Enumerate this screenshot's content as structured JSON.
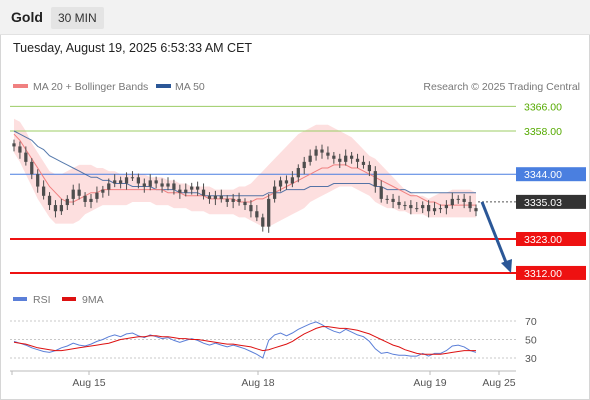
{
  "header": {
    "asset": "Gold",
    "timeframe": "30 MIN"
  },
  "datetime": "Tuesday, August 19, 2025 6:53:33 AM CET",
  "legend": {
    "bb": "MA 20 + Bollinger Bands",
    "ma50": "MA 50",
    "rsi": "RSI",
    "ma9": "9MA",
    "credit": "Research © 2025 Trading Central"
  },
  "colors": {
    "bb_fill": "#fdd9d9",
    "ma20": "#f08080",
    "ma50": "#2b5797",
    "candle": "#4d4d4d",
    "green_level": "#55aa00",
    "blue_level": "#4a7fe0",
    "red_level": "#ee1111",
    "current": "#333333",
    "arrow": "#2b5797",
    "rsi": "#5b7fd8",
    "rsi_ma": "#dd1111"
  },
  "chart_data": {
    "type": "candlestick",
    "instrument": "Gold",
    "timeframe": "30 MIN",
    "x_labels": [
      "Aug 15",
      "Aug 18",
      "Aug 19",
      "Aug 25"
    ],
    "ylim": [
      3302,
      3374
    ],
    "levels": [
      {
        "value": 3366.0,
        "label": "3366.00",
        "style": "green"
      },
      {
        "value": 3358.0,
        "label": "3358.00",
        "style": "green"
      },
      {
        "value": 3344.0,
        "label": "3344.00",
        "style": "blue"
      },
      {
        "value": 3335.03,
        "label": "3335.03",
        "style": "current"
      },
      {
        "value": 3323.0,
        "label": "3323.00",
        "style": "red"
      },
      {
        "value": 3312.0,
        "label": "3312.00",
        "style": "red"
      }
    ],
    "close": [
      3353,
      3351,
      3348,
      3344,
      3340,
      3337,
      3334,
      3332,
      3334,
      3336,
      3339,
      3337,
      3335,
      3336,
      3338,
      3339,
      3341,
      3342,
      3341,
      3343,
      3343,
      3341,
      3340,
      3342,
      3341,
      3340,
      3341,
      3339,
      3338,
      3339,
      3340,
      3339,
      3337,
      3336,
      3337,
      3336,
      3335,
      3336,
      3335,
      3334,
      3332,
      3330,
      3327,
      3336,
      3340,
      3342,
      3341,
      3343,
      3346,
      3348,
      3350,
      3352,
      3351,
      3350,
      3349,
      3348,
      3350,
      3349,
      3348,
      3347,
      3345,
      3340,
      3336,
      3336,
      3335,
      3334,
      3334,
      3333,
      3333,
      3334,
      3332,
      3333,
      3333,
      3334,
      3336,
      3336,
      3335,
      3333,
      3332
    ],
    "ma20": [
      3357,
      3355,
      3352,
      3349,
      3346,
      3343,
      3340,
      3338,
      3336,
      3335,
      3335,
      3336,
      3337,
      3338,
      3338,
      3339,
      3339,
      3339,
      3339,
      3339,
      3339,
      3339,
      3339,
      3339,
      3339,
      3339,
      3338,
      3338,
      3338,
      3337,
      3337,
      3337,
      3337,
      3336,
      3336,
      3336,
      3336,
      3336,
      3335,
      3335,
      3335,
      3336,
      3336,
      3337,
      3338,
      3339,
      3340,
      3341,
      3342,
      3343,
      3344,
      3345,
      3346,
      3346,
      3347,
      3347,
      3347,
      3346,
      3346,
      3345,
      3344,
      3343,
      3342,
      3341,
      3340,
      3339,
      3338,
      3337,
      3337,
      3336,
      3335,
      3335,
      3334,
      3334,
      3334,
      3334,
      3334,
      3334,
      3334
    ],
    "bb_upper": [
      3362,
      3361,
      3358,
      3354,
      3351,
      3348,
      3345,
      3344,
      3344,
      3345,
      3346,
      3347,
      3347,
      3347,
      3346,
      3346,
      3345,
      3345,
      3344,
      3344,
      3344,
      3344,
      3344,
      3343,
      3343,
      3343,
      3342,
      3342,
      3341,
      3341,
      3340,
      3340,
      3340,
      3340,
      3339,
      3339,
      3339,
      3339,
      3340,
      3340,
      3341,
      3343,
      3345,
      3347,
      3349,
      3351,
      3353,
      3355,
      3357,
      3358,
      3359,
      3360,
      3360,
      3360,
      3359,
      3358,
      3357,
      3356,
      3354,
      3352,
      3350,
      3349,
      3347,
      3345,
      3343,
      3341,
      3339,
      3338,
      3337,
      3337,
      3336,
      3337,
      3338,
      3338,
      3339,
      3339,
      3339,
      3339,
      3338
    ],
    "bb_lower": [
      3351,
      3348,
      3344,
      3340,
      3336,
      3333,
      3330,
      3328,
      3328,
      3328,
      3328,
      3329,
      3331,
      3332,
      3333,
      3334,
      3334,
      3334,
      3334,
      3334,
      3335,
      3335,
      3335,
      3335,
      3334,
      3334,
      3334,
      3333,
      3333,
      3333,
      3332,
      3332,
      3332,
      3331,
      3331,
      3331,
      3331,
      3331,
      3330,
      3330,
      3329,
      3328,
      3327,
      3327,
      3328,
      3329,
      3330,
      3331,
      3332,
      3333,
      3335,
      3336,
      3337,
      3338,
      3339,
      3340,
      3340,
      3340,
      3339,
      3338,
      3337,
      3335,
      3334,
      3333,
      3333,
      3332,
      3332,
      3331,
      3331,
      3331,
      3330,
      3330,
      3330,
      3330,
      3330,
      3330,
      3330,
      3330,
      3330
    ],
    "ma50": [
      3358,
      3357,
      3356,
      3355,
      3353,
      3352,
      3350,
      3349,
      3348,
      3347,
      3346,
      3345,
      3344,
      3343,
      3343,
      3342,
      3342,
      3341,
      3341,
      3341,
      3340,
      3340,
      3340,
      3340,
      3339,
      3339,
      3339,
      3339,
      3338,
      3338,
      3338,
      3338,
      3337,
      3337,
      3337,
      3337,
      3337,
      3337,
      3337,
      3337,
      3337,
      3337,
      3337,
      3338,
      3338,
      3338,
      3339,
      3339,
      3339,
      3339,
      3340,
      3340,
      3340,
      3340,
      3341,
      3341,
      3341,
      3341,
      3341,
      3341,
      3341,
      3340,
      3340,
      3339,
      3339,
      3339,
      3339,
      3338,
      3338,
      3338,
      3338,
      3338,
      3338,
      3338,
      3338,
      3338,
      3338,
      3338,
      3338
    ],
    "forecast_arrow": {
      "from": 3335,
      "to": 3312
    },
    "rsi": {
      "levels": [
        70,
        50,
        30
      ],
      "ylim": [
        15,
        85
      ],
      "values": [
        48,
        46,
        44,
        41,
        39,
        37,
        36,
        38,
        41,
        43,
        46,
        44,
        43,
        45,
        48,
        50,
        53,
        55,
        53,
        56,
        57,
        54,
        52,
        55,
        53,
        51,
        52,
        49,
        47,
        49,
        51,
        49,
        46,
        44,
        46,
        44,
        42,
        44,
        42,
        40,
        37,
        34,
        30,
        49,
        55,
        57,
        54,
        57,
        61,
        64,
        67,
        69,
        66,
        62,
        59,
        57,
        61,
        58,
        55,
        53,
        48,
        40,
        35,
        36,
        34,
        33,
        33,
        32,
        32,
        35,
        32,
        35,
        35,
        38,
        43,
        44,
        42,
        38,
        36
      ],
      "ma9": [
        47,
        46,
        45,
        43,
        41,
        40,
        39,
        38,
        38,
        39,
        40,
        41,
        42,
        43,
        44,
        45,
        46,
        48,
        50,
        51,
        52,
        53,
        53,
        54,
        54,
        53,
        53,
        52,
        51,
        51,
        50,
        50,
        49,
        48,
        47,
        46,
        45,
        45,
        44,
        43,
        42,
        40,
        38,
        39,
        41,
        43,
        45,
        48,
        52,
        56,
        59,
        62,
        64,
        64,
        63,
        62,
        62,
        61,
        60,
        58,
        56,
        53,
        50,
        47,
        44,
        42,
        39,
        37,
        35,
        34,
        34,
        34,
        34,
        35,
        36,
        37,
        38,
        38,
        38
      ]
    }
  }
}
